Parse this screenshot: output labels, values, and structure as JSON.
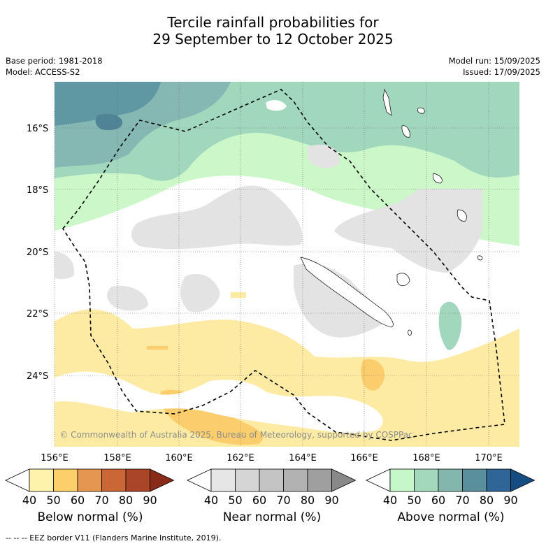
{
  "title": {
    "line1": "Tercile rainfall probabilities for",
    "line2": "29 September to 12 October 2025"
  },
  "meta": {
    "base_period": "Base period: 1981-2018",
    "model": "Model: ACCESS-S2",
    "model_run": "Model run: 15/09/2025",
    "issued": "Issued: 17/09/2025"
  },
  "map": {
    "copyright": "© Commonwealth of Australia 2025, Bureau of Meteorology, supported by COSPPac",
    "lon_ticks": [
      "156°E",
      "158°E",
      "160°E",
      "162°E",
      "164°E",
      "166°E",
      "168°E",
      "170°E"
    ],
    "lat_ticks": [
      "16°S",
      "18°S",
      "20°S",
      "22°S",
      "24°S"
    ],
    "colors": {
      "ocean_neutral": "#ffffff",
      "above_50": "#cbf7c9",
      "above_60": "#a1d8bd",
      "above_70": "#86b8b3",
      "above_80": "#5f97a2",
      "near_50": "#e3e3e3",
      "below_50": "#fdeba3",
      "below_60": "#fccd6c"
    }
  },
  "colorbars": [
    {
      "label": "Below normal (%)",
      "ticks": [
        "40",
        "50",
        "60",
        "70",
        "80",
        "90"
      ],
      "colors": [
        "#fff2ad",
        "#fccf6b",
        "#e59650",
        "#cb6636",
        "#ab4527",
        "#8a2b19"
      ]
    },
    {
      "label": "Near normal (%)",
      "ticks": [
        "40",
        "50",
        "60",
        "70",
        "80",
        "90"
      ],
      "colors": [
        "#e6e6e6",
        "#d5d5d5",
        "#c4c4c4",
        "#b2b2b2",
        "#9f9f9f",
        "#898989"
      ]
    },
    {
      "label": "Above normal (%)",
      "ticks": [
        "40",
        "50",
        "60",
        "70",
        "80",
        "90"
      ],
      "colors": [
        "#c6f7c8",
        "#a3d8bd",
        "#83b7ae",
        "#5a8f9e",
        "#2f6597",
        "#154d83"
      ]
    }
  ],
  "footnote": "-- -- -- EEZ border V11 (Flanders Marine Institute, 2019)."
}
